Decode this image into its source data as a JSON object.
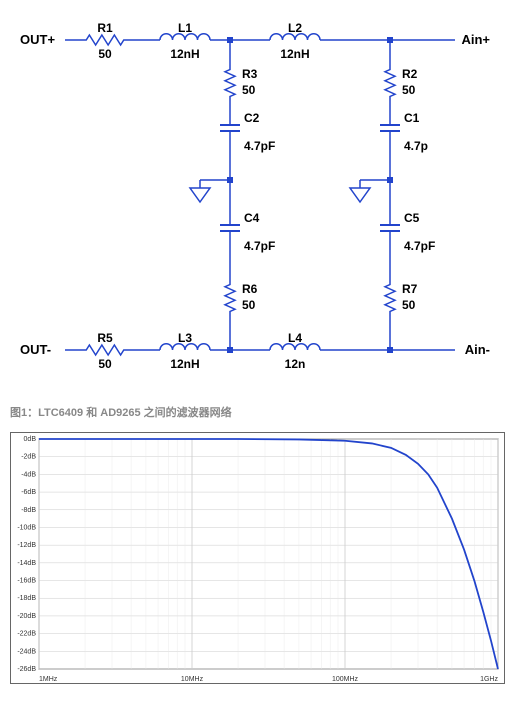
{
  "schematic": {
    "ports": {
      "out_plus": "OUT+",
      "out_minus": "OUT-",
      "ain_plus": "Ain+",
      "ain_minus": "Ain-"
    },
    "components": {
      "R1": {
        "name": "R1",
        "value": "50"
      },
      "R2": {
        "name": "R2",
        "value": "50"
      },
      "R3": {
        "name": "R3",
        "value": "50"
      },
      "R5": {
        "name": "R5",
        "value": "50"
      },
      "R6": {
        "name": "R6",
        "value": "50"
      },
      "R7": {
        "name": "R7",
        "value": "50"
      },
      "L1": {
        "name": "L1",
        "value": "12nH"
      },
      "L2": {
        "name": "L2",
        "value": "12nH"
      },
      "L3": {
        "name": "L3",
        "value": "12nH"
      },
      "L4": {
        "name": "L4",
        "value": "12n"
      },
      "C1": {
        "name": "C1",
        "value": "4.7p"
      },
      "C2": {
        "name": "C2",
        "value": "4.7pF"
      },
      "C4": {
        "name": "C4",
        "value": "4.7pF"
      },
      "C5": {
        "name": "C5",
        "value": "4.7pF"
      }
    },
    "colors": {
      "wire": "#2244cc",
      "label": "#000000"
    }
  },
  "caption": "图1：LTC6409 和 AD9265 之间的滤波器网络",
  "chart": {
    "type": "line",
    "background_color": "#ffffff",
    "grid_color": "#cccccc",
    "grid_minor_color": "#e6e6e6",
    "line_color": "#2244cc",
    "border_color": "#666666",
    "x_axis": {
      "scale": "log",
      "xlim": [
        1000000.0,
        1000000000.0
      ],
      "ticks": [
        {
          "value": 1000000.0,
          "label": "1MHz"
        },
        {
          "value": 10000000.0,
          "label": "10MHz"
        },
        {
          "value": 100000000.0,
          "label": "100MHz"
        },
        {
          "value": 1000000000.0,
          "label": "1GHz"
        }
      ]
    },
    "y_axis": {
      "scale": "linear",
      "ylim": [
        -26,
        0
      ],
      "tick_step": 2,
      "unit": "dB",
      "ticks": [
        {
          "value": 0,
          "label": "0dB"
        },
        {
          "value": -2,
          "label": "-2dB"
        },
        {
          "value": -4,
          "label": "-4dB"
        },
        {
          "value": -6,
          "label": "-6dB"
        },
        {
          "value": -8,
          "label": "-8dB"
        },
        {
          "value": -10,
          "label": "-10dB"
        },
        {
          "value": -12,
          "label": "-12dB"
        },
        {
          "value": -14,
          "label": "-14dB"
        },
        {
          "value": -16,
          "label": "-16dB"
        },
        {
          "value": -18,
          "label": "-18dB"
        },
        {
          "value": -20,
          "label": "-20dB"
        },
        {
          "value": -22,
          "label": "-22dB"
        },
        {
          "value": -24,
          "label": "-24dB"
        },
        {
          "value": -26,
          "label": "-26dB"
        }
      ]
    },
    "series": {
      "color": "#2244cc",
      "freq_hz": [
        1000000.0,
        2000000.0,
        5000000.0,
        10000000.0,
        20000000.0,
        50000000.0,
        100000000.0,
        150000000.0,
        200000000.0,
        250000000.0,
        300000000.0,
        350000000.0,
        400000000.0,
        500000000.0,
        600000000.0,
        700000000.0,
        800000000.0,
        900000000.0,
        1000000000.0
      ],
      "gain_db": [
        0,
        0,
        0,
        0,
        0,
        -0.05,
        -0.2,
        -0.5,
        -1.0,
        -1.8,
        -2.8,
        -4.0,
        -5.5,
        -9.0,
        -12.5,
        -16.0,
        -19.5,
        -22.8,
        -26.0
      ]
    }
  }
}
